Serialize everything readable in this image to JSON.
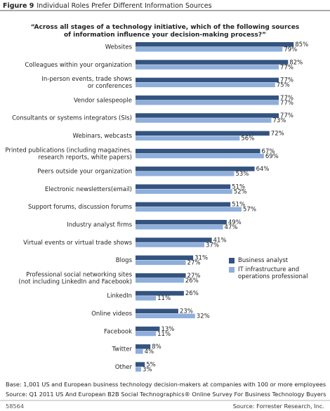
{
  "chart_data": {
    "type": "bar",
    "figure": "Figure 9",
    "title": "Individual Roles Prefer Different Information Sources",
    "question": "“Across all stages of a technology initiative, which of the following sources of information influence your decision-making process?”",
    "categories": [
      [
        "Websites"
      ],
      [
        "Colleagues within your organization"
      ],
      [
        "In-person events, trade shows",
        "or conferences"
      ],
      [
        "Vendor salespeople"
      ],
      [
        "Consultants or systems integrators (SIs)"
      ],
      [
        "Webinars, webcasts"
      ],
      [
        "Printed publications (including magazines,",
        "research reports, white papers)"
      ],
      [
        "Peers outside your organization"
      ],
      [
        "Electronic newsletters(email)"
      ],
      [
        "Support forums, discussion forums"
      ],
      [
        "Industry analyst firms"
      ],
      [
        "Virtual events or virtual trade shows"
      ],
      [
        "Blogs"
      ],
      [
        "Professional social networking sites",
        "(not including LinkedIn and Facebook)"
      ],
      [
        "LinkedIn"
      ],
      [
        "Online videos"
      ],
      [
        "Facebook"
      ],
      [
        "Twitter"
      ],
      [
        "Other"
      ]
    ],
    "series": [
      {
        "name": "Business analyst",
        "color": "#34537f",
        "values": [
          85,
          82,
          77,
          77,
          77,
          72,
          67,
          64,
          51,
          51,
          49,
          41,
          31,
          27,
          26,
          23,
          13,
          8,
          5
        ],
        "value_labels": [
          "85%",
          "82%",
          "77%",
          "77%",
          "77%",
          "72%",
          "67%",
          "64%",
          "51%",
          "51%",
          "49%",
          "41%",
          "31%",
          "27%",
          "26%",
          "23%",
          "13%",
          "8%",
          "5%"
        ]
      },
      {
        "name": "IT infrastructure and operations professional",
        "color": "#8eaedb",
        "values": [
          79,
          77,
          75,
          77,
          73,
          56,
          69,
          53,
          52,
          57,
          47,
          37,
          27,
          26,
          11,
          32,
          11,
          4,
          3
        ],
        "value_labels": [
          "79%",
          "77%",
          "75%",
          "77%",
          "73%",
          "56%",
          "69%",
          "53%",
          "52%",
          "57%",
          "47%",
          "37%",
          "27%",
          "26%",
          "11%",
          "32%",
          "11%",
          "4%",
          "3%"
        ]
      }
    ],
    "base": "Base: 1,001 US and European business technology decision-makers at companies with 100 or more employees",
    "source": "Source: Q1 2011 US And European B2B Social Technographics® Online Survey For Business Technology Buyers",
    "id": "58564",
    "credit": "Source: Forrester Research, Inc."
  }
}
